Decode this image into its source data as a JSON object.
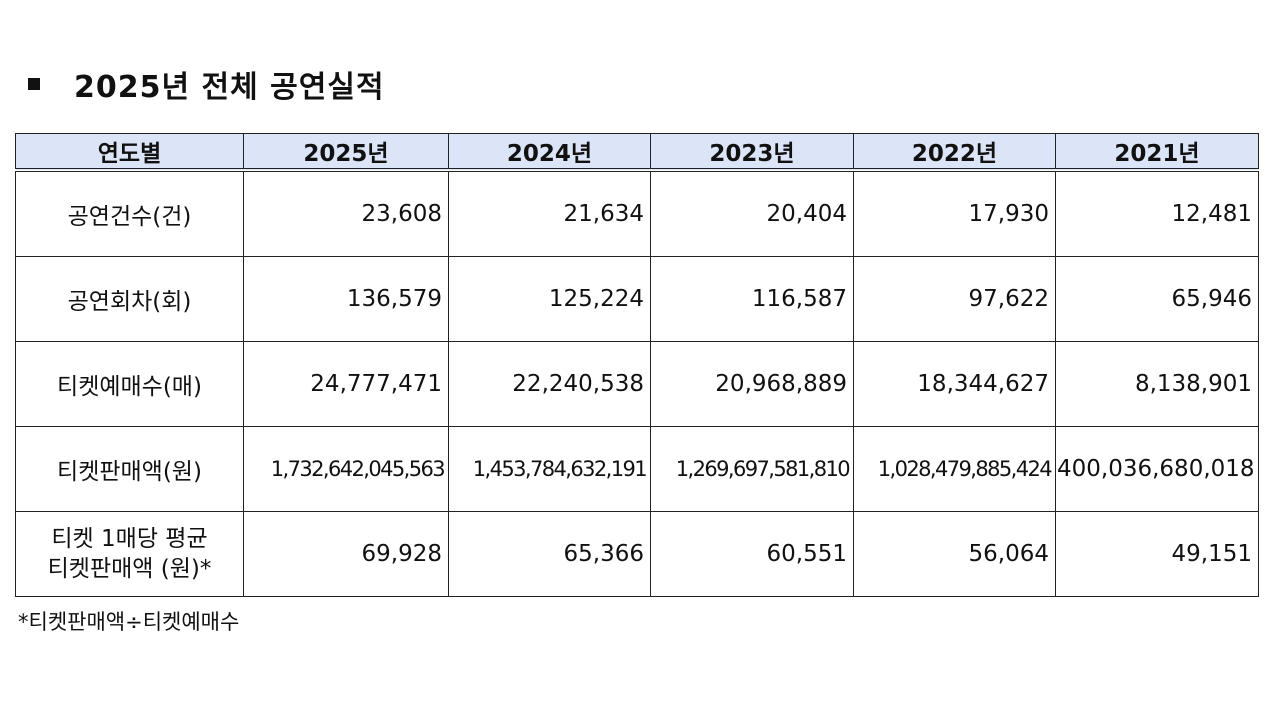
{
  "title": "2025년 전체 공연실적",
  "table": {
    "headers": [
      "연도별",
      "2025년",
      "2024년",
      "2023년",
      "2022년",
      "2021년"
    ],
    "rows": [
      {
        "label": "공연건수(건)",
        "values": [
          "23,608",
          "21,634",
          "20,404",
          "17,930",
          "12,481"
        ]
      },
      {
        "label": "공연회차(회)",
        "values": [
          "136,579",
          "125,224",
          "116,587",
          "97,622",
          "65,946"
        ]
      },
      {
        "label": "티켓예매수(매)",
        "values": [
          "24,777,471",
          "22,240,538",
          "20,968,889",
          "18,344,627",
          "8,138,901"
        ]
      },
      {
        "label": "티켓판매액(원)",
        "values": [
          "1,732,642,045,563",
          "1,453,784,632,191",
          "1,269,697,581,810",
          "1,028,479,885,424",
          "400,036,680,018"
        ]
      },
      {
        "label": "티켓 1매당 평균",
        "label2": "티켓판매액 (원)*",
        "values": [
          "69,928",
          "65,366",
          "60,551",
          "56,064",
          "49,151"
        ]
      }
    ]
  },
  "footnote": "*티켓판매액÷티켓예매수"
}
